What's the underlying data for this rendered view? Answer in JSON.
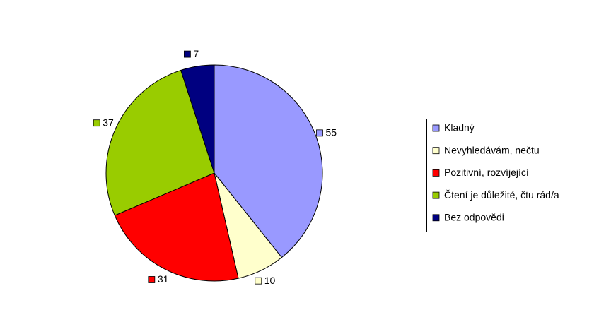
{
  "chart_data": {
    "type": "pie",
    "categories": [
      "Kladný",
      "Nevyhledávám, nečtu",
      "Pozitivní, rozvíjející",
      "Čtení je důležité, čtu rád/a",
      "Bez odpovědi"
    ],
    "values": [
      55,
      10,
      31,
      37,
      7
    ],
    "colors": [
      "#9999ff",
      "#ffffcc",
      "#ff0000",
      "#99cc00",
      "#000080"
    ],
    "legend": "right"
  }
}
